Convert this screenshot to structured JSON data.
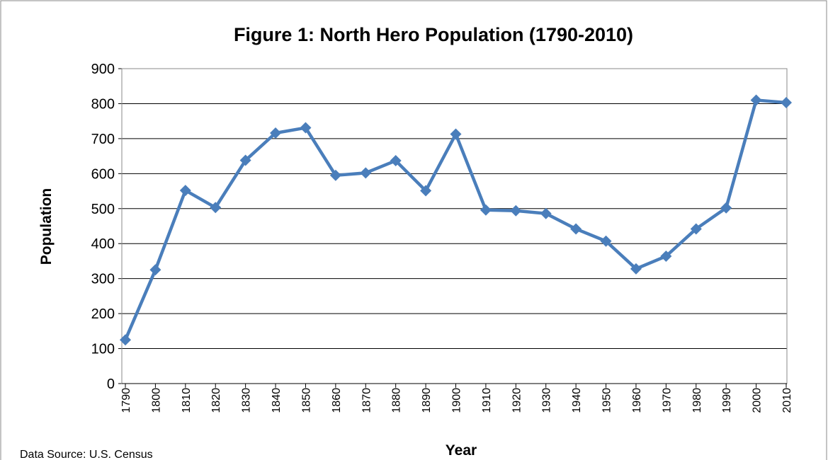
{
  "chart_data": {
    "type": "line",
    "title": "Figure 1:  North Hero Population (1790-2010)",
    "x_label": "Year",
    "y_label": "Population",
    "source": "Data Source:  U.S. Census",
    "categories": [
      "1790",
      "1800",
      "1810",
      "1820",
      "1830",
      "1840",
      "1850",
      "1860",
      "1870",
      "1880",
      "1890",
      "1900",
      "1910",
      "1920",
      "1930",
      "1940",
      "1950",
      "1960",
      "1970",
      "1980",
      "1990",
      "2000",
      "2010"
    ],
    "series": [
      {
        "name": "Population",
        "color": "#4a7ebb",
        "values": [
          125,
          325,
          552,
          503,
          638,
          716,
          731,
          595,
          602,
          637,
          551,
          713,
          496,
          494,
          486,
          442,
          407,
          328,
          364,
          442,
          502,
          810,
          803
        ]
      }
    ],
    "ylim": [
      0,
      900
    ],
    "yticks": [
      0,
      100,
      200,
      300,
      400,
      500,
      600,
      700,
      800,
      900
    ],
    "grid": true
  }
}
